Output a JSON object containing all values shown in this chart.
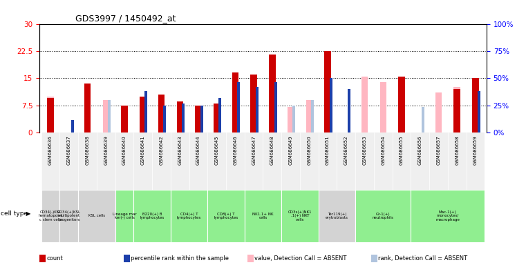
{
  "title": "GDS3997 / 1450492_at",
  "gsm_ids": [
    "GSM686636",
    "GSM686637",
    "GSM686638",
    "GSM686639",
    "GSM686640",
    "GSM686641",
    "GSM686642",
    "GSM686643",
    "GSM686644",
    "GSM686645",
    "GSM686646",
    "GSM686647",
    "GSM686648",
    "GSM686649",
    "GSM686650",
    "GSM686651",
    "GSM686652",
    "GSM686653",
    "GSM686654",
    "GSM686655",
    "GSM686656",
    "GSM686657",
    "GSM686658",
    "GSM686659"
  ],
  "count_values": [
    9.5,
    0,
    13.5,
    0,
    7.5,
    10.0,
    10.5,
    8.5,
    7.5,
    8.0,
    16.5,
    16.0,
    21.5,
    0,
    0,
    22.5,
    0,
    0,
    0,
    15.5,
    0,
    0,
    12.0,
    15.0
  ],
  "percentile_values": [
    0,
    3.5,
    0,
    0,
    0,
    11.5,
    7.5,
    8.0,
    7.5,
    9.5,
    14.0,
    12.5,
    14.0,
    0,
    0,
    15.0,
    12.0,
    0,
    0,
    0,
    0,
    0,
    0,
    11.5
  ],
  "absent_value_values": [
    10.0,
    0,
    13.5,
    9.0,
    0,
    0,
    0,
    0,
    0,
    0,
    16.5,
    0,
    0,
    7.0,
    9.0,
    0,
    0,
    15.5,
    14.0,
    14.5,
    0,
    11.0,
    12.5,
    0
  ],
  "absent_rank_values": [
    0,
    3.0,
    0,
    9.0,
    0,
    0,
    0,
    0,
    0,
    0,
    0,
    0,
    0,
    7.5,
    9.0,
    0,
    12.0,
    0,
    0,
    0,
    7.0,
    0,
    0,
    0
  ],
  "cell_type_groups": [
    {
      "label": "CD34(-)KSL\nhematopoiet\nc stem cells",
      "start": 0,
      "end": 1,
      "color": "#d3d3d3"
    },
    {
      "label": "CD34(+)KSL\nmultipotent\nprogenitors",
      "start": 1,
      "end": 2,
      "color": "#d3d3d3"
    },
    {
      "label": "KSL cells",
      "start": 2,
      "end": 4,
      "color": "#d3d3d3"
    },
    {
      "label": "Lineage mar\nker(-) cells",
      "start": 4,
      "end": 5,
      "color": "#90ee90"
    },
    {
      "label": "B220(+) B\nlymphocytes",
      "start": 5,
      "end": 7,
      "color": "#90ee90"
    },
    {
      "label": "CD4(+) T\nlymphocytes",
      "start": 7,
      "end": 9,
      "color": "#90ee90"
    },
    {
      "label": "CD8(+) T\nlymphocytes",
      "start": 9,
      "end": 11,
      "color": "#90ee90"
    },
    {
      "label": "NK1.1+ NK\ncells",
      "start": 11,
      "end": 13,
      "color": "#90ee90"
    },
    {
      "label": "CD3s(+)NK1\n.1(+) NKT\ncells",
      "start": 13,
      "end": 15,
      "color": "#90ee90"
    },
    {
      "label": "Ter119(+)\nerytroblasts",
      "start": 15,
      "end": 17,
      "color": "#d3d3d3"
    },
    {
      "label": "Gr-1(+)\nneutrophils",
      "start": 17,
      "end": 20,
      "color": "#90ee90"
    },
    {
      "label": "Mac-1(+)\nmonocytes/\nmacrophage",
      "start": 20,
      "end": 24,
      "color": "#90ee90"
    }
  ],
  "ylim_left": [
    0,
    30
  ],
  "ylim_right": [
    0,
    100
  ],
  "yticks_left": [
    0,
    7.5,
    15,
    22.5,
    30
  ],
  "yticks_right": [
    0,
    25,
    50,
    75,
    100
  ],
  "ytick_labels_left": [
    "0",
    "7.5",
    "15",
    "22.5",
    "30"
  ],
  "ytick_labels_right": [
    "0%",
    "25%",
    "50%",
    "75%",
    "100%"
  ],
  "count_color": "#cc0000",
  "percentile_color": "#1c3faa",
  "absent_value_color": "#ffb6c1",
  "absent_rank_color": "#b0c4de",
  "legend_labels": [
    "count",
    "percentile rank within the sample",
    "value, Detection Call = ABSENT",
    "rank, Detection Call = ABSENT"
  ],
  "legend_colors": [
    "#cc0000",
    "#1c3faa",
    "#ffb6c1",
    "#b0c4de"
  ],
  "bg_color": "#ffffff",
  "plot_bg": "#ffffff"
}
